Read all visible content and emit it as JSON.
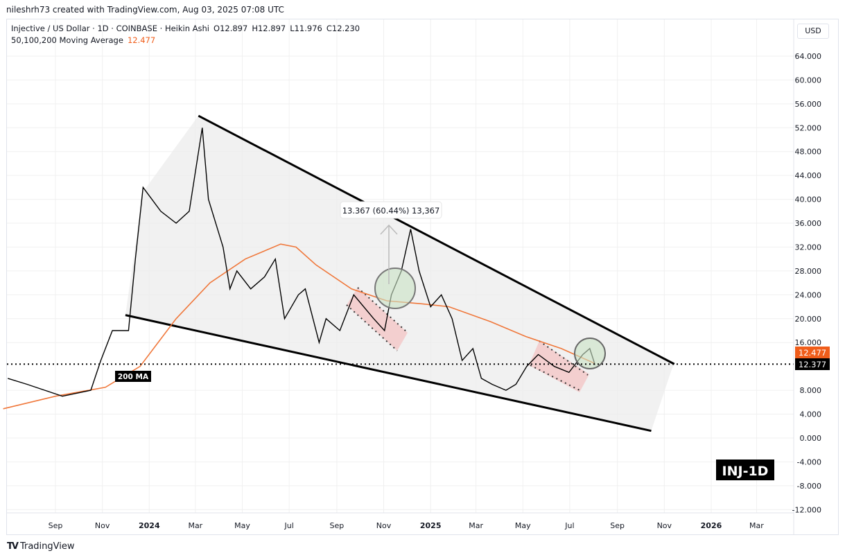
{
  "credit": "nileshrh73 created with TradingView.com, Aug 03, 2025 07:08 UTC",
  "legend": {
    "symbol": "Injective / US Dollar · 1D · COINBASE · Heikin Ashi",
    "open": "O12.897",
    "high": "H12.897",
    "low": "L11.976",
    "close": "C12.230",
    "ma_label": "50,100,200 Moving Average",
    "ma_value": "12.477"
  },
  "currency_button": "USD",
  "footer_brand": "TradingView",
  "colors": {
    "price": "#000000",
    "ma": "#f0773a",
    "ma_badge": "#f05d1a",
    "last_badge": "#000000",
    "wedge_fill": "#e9e9e9",
    "circle": "#d4e7d2",
    "flag": "#f4c7c7"
  },
  "annotations": {
    "measure_label": "13.367 (60.44%) 13,367",
    "ma_tag": "200 MA",
    "ticker_tag": "INJ-1D"
  },
  "chart_data": {
    "type": "line",
    "title": "",
    "xlabel": "",
    "ylabel": "",
    "ylim": [
      -14,
      66
    ],
    "xlim": [
      "2023-06-25",
      "2026-04-01"
    ],
    "grid": true,
    "y_ticks": [
      "64.000",
      "60.000",
      "56.000",
      "52.000",
      "48.000",
      "44.000",
      "40.000",
      "36.000",
      "32.000",
      "28.000",
      "24.000",
      "20.000",
      "16.000",
      "8.000",
      "4.000",
      "0.000",
      "-4.000",
      "-8.000",
      "-12.000"
    ],
    "y_tick_values": [
      64,
      60,
      56,
      52,
      48,
      44,
      40,
      36,
      32,
      28,
      24,
      20,
      16,
      8,
      4,
      0,
      -4,
      -8,
      -12
    ],
    "x_ticks": [
      {
        "label": "Sep",
        "date": "2023-09-01"
      },
      {
        "label": "Nov",
        "date": "2023-11-01"
      },
      {
        "label": "2024",
        "date": "2024-01-01",
        "bold": true
      },
      {
        "label": "Mar",
        "date": "2024-03-01"
      },
      {
        "label": "May",
        "date": "2024-05-01"
      },
      {
        "label": "Jul",
        "date": "2024-07-01"
      },
      {
        "label": "Sep",
        "date": "2024-09-01"
      },
      {
        "label": "Nov",
        "date": "2024-11-01"
      },
      {
        "label": "2025",
        "date": "2025-01-01",
        "bold": true
      },
      {
        "label": "Mar",
        "date": "2025-03-01"
      },
      {
        "label": "May",
        "date": "2025-05-01"
      },
      {
        "label": "Jul",
        "date": "2025-07-01"
      },
      {
        "label": "Sep",
        "date": "2025-09-01"
      },
      {
        "label": "Nov",
        "date": "2025-11-01"
      },
      {
        "label": "2026",
        "date": "2026-01-01",
        "bold": true
      },
      {
        "label": "Mar",
        "date": "2026-03-01"
      }
    ],
    "last_price": "12.377",
    "ma_price": "12.477",
    "series": [
      {
        "name": "Injective / US Dollar",
        "points": [
          [
            "2023-07-01",
            10
          ],
          [
            "2023-07-26",
            9
          ],
          [
            "2023-09-10",
            7
          ],
          [
            "2023-10-17",
            8
          ],
          [
            "2023-10-30",
            13
          ],
          [
            "2023-11-14",
            18
          ],
          [
            "2023-12-05",
            18
          ],
          [
            "2023-12-14",
            30
          ],
          [
            "2023-12-24",
            42
          ],
          [
            "2024-01-16",
            38
          ],
          [
            "2024-02-05",
            36
          ],
          [
            "2024-02-22",
            38
          ],
          [
            "2024-03-10",
            52
          ],
          [
            "2024-03-18",
            40
          ],
          [
            "2024-04-06",
            32
          ],
          [
            "2024-04-15",
            25
          ],
          [
            "2024-04-24",
            28
          ],
          [
            "2024-05-12",
            25
          ],
          [
            "2024-05-30",
            27
          ],
          [
            "2024-06-13",
            30
          ],
          [
            "2024-06-25",
            20
          ],
          [
            "2024-07-13",
            24
          ],
          [
            "2024-07-22",
            25
          ],
          [
            "2024-08-09",
            16
          ],
          [
            "2024-08-18",
            20
          ],
          [
            "2024-09-05",
            18
          ],
          [
            "2024-09-23",
            24
          ],
          [
            "2024-10-19",
            20
          ],
          [
            "2024-11-02",
            18
          ],
          [
            "2024-11-11",
            24
          ],
          [
            "2024-11-24",
            28
          ],
          [
            "2024-12-06",
            35
          ],
          [
            "2024-12-17",
            28
          ],
          [
            "2025-01-01",
            22
          ],
          [
            "2025-01-15",
            24
          ],
          [
            "2025-01-29",
            20
          ],
          [
            "2025-02-11",
            13
          ],
          [
            "2025-02-25",
            15
          ],
          [
            "2025-03-08",
            10
          ],
          [
            "2025-03-22",
            9
          ],
          [
            "2025-04-09",
            8
          ],
          [
            "2025-04-22",
            9
          ],
          [
            "2025-05-06",
            12
          ],
          [
            "2025-05-21",
            14
          ],
          [
            "2025-06-11",
            12
          ],
          [
            "2025-06-30",
            11
          ],
          [
            "2025-07-18",
            14
          ],
          [
            "2025-07-27",
            15
          ],
          [
            "2025-08-03",
            12.23
          ]
        ]
      },
      {
        "name": "200 MA",
        "points": [
          [
            "2023-06-25",
            4.9
          ],
          [
            "2023-09-01",
            7
          ],
          [
            "2023-11-05",
            8.5
          ],
          [
            "2023-12-20",
            12
          ],
          [
            "2024-02-05",
            20
          ],
          [
            "2024-03-20",
            26
          ],
          [
            "2024-05-05",
            30
          ],
          [
            "2024-06-20",
            32.5
          ],
          [
            "2024-07-10",
            32
          ],
          [
            "2024-08-05",
            29
          ],
          [
            "2024-09-20",
            25
          ],
          [
            "2024-11-05",
            23
          ],
          [
            "2024-12-20",
            22.5
          ],
          [
            "2025-01-25",
            22
          ],
          [
            "2025-03-20",
            19.5
          ],
          [
            "2025-05-05",
            17
          ],
          [
            "2025-06-20",
            15
          ],
          [
            "2025-07-25",
            13
          ],
          [
            "2025-08-03",
            12.477
          ]
        ]
      }
    ],
    "wedge": {
      "upper": [
        [
          "2024-03-05",
          54
        ],
        [
          "2025-11-14",
          12.4
        ]
      ],
      "lower": [
        [
          "2023-12-01",
          20.6
        ],
        [
          "2025-10-15",
          1.2
        ]
      ]
    }
  }
}
